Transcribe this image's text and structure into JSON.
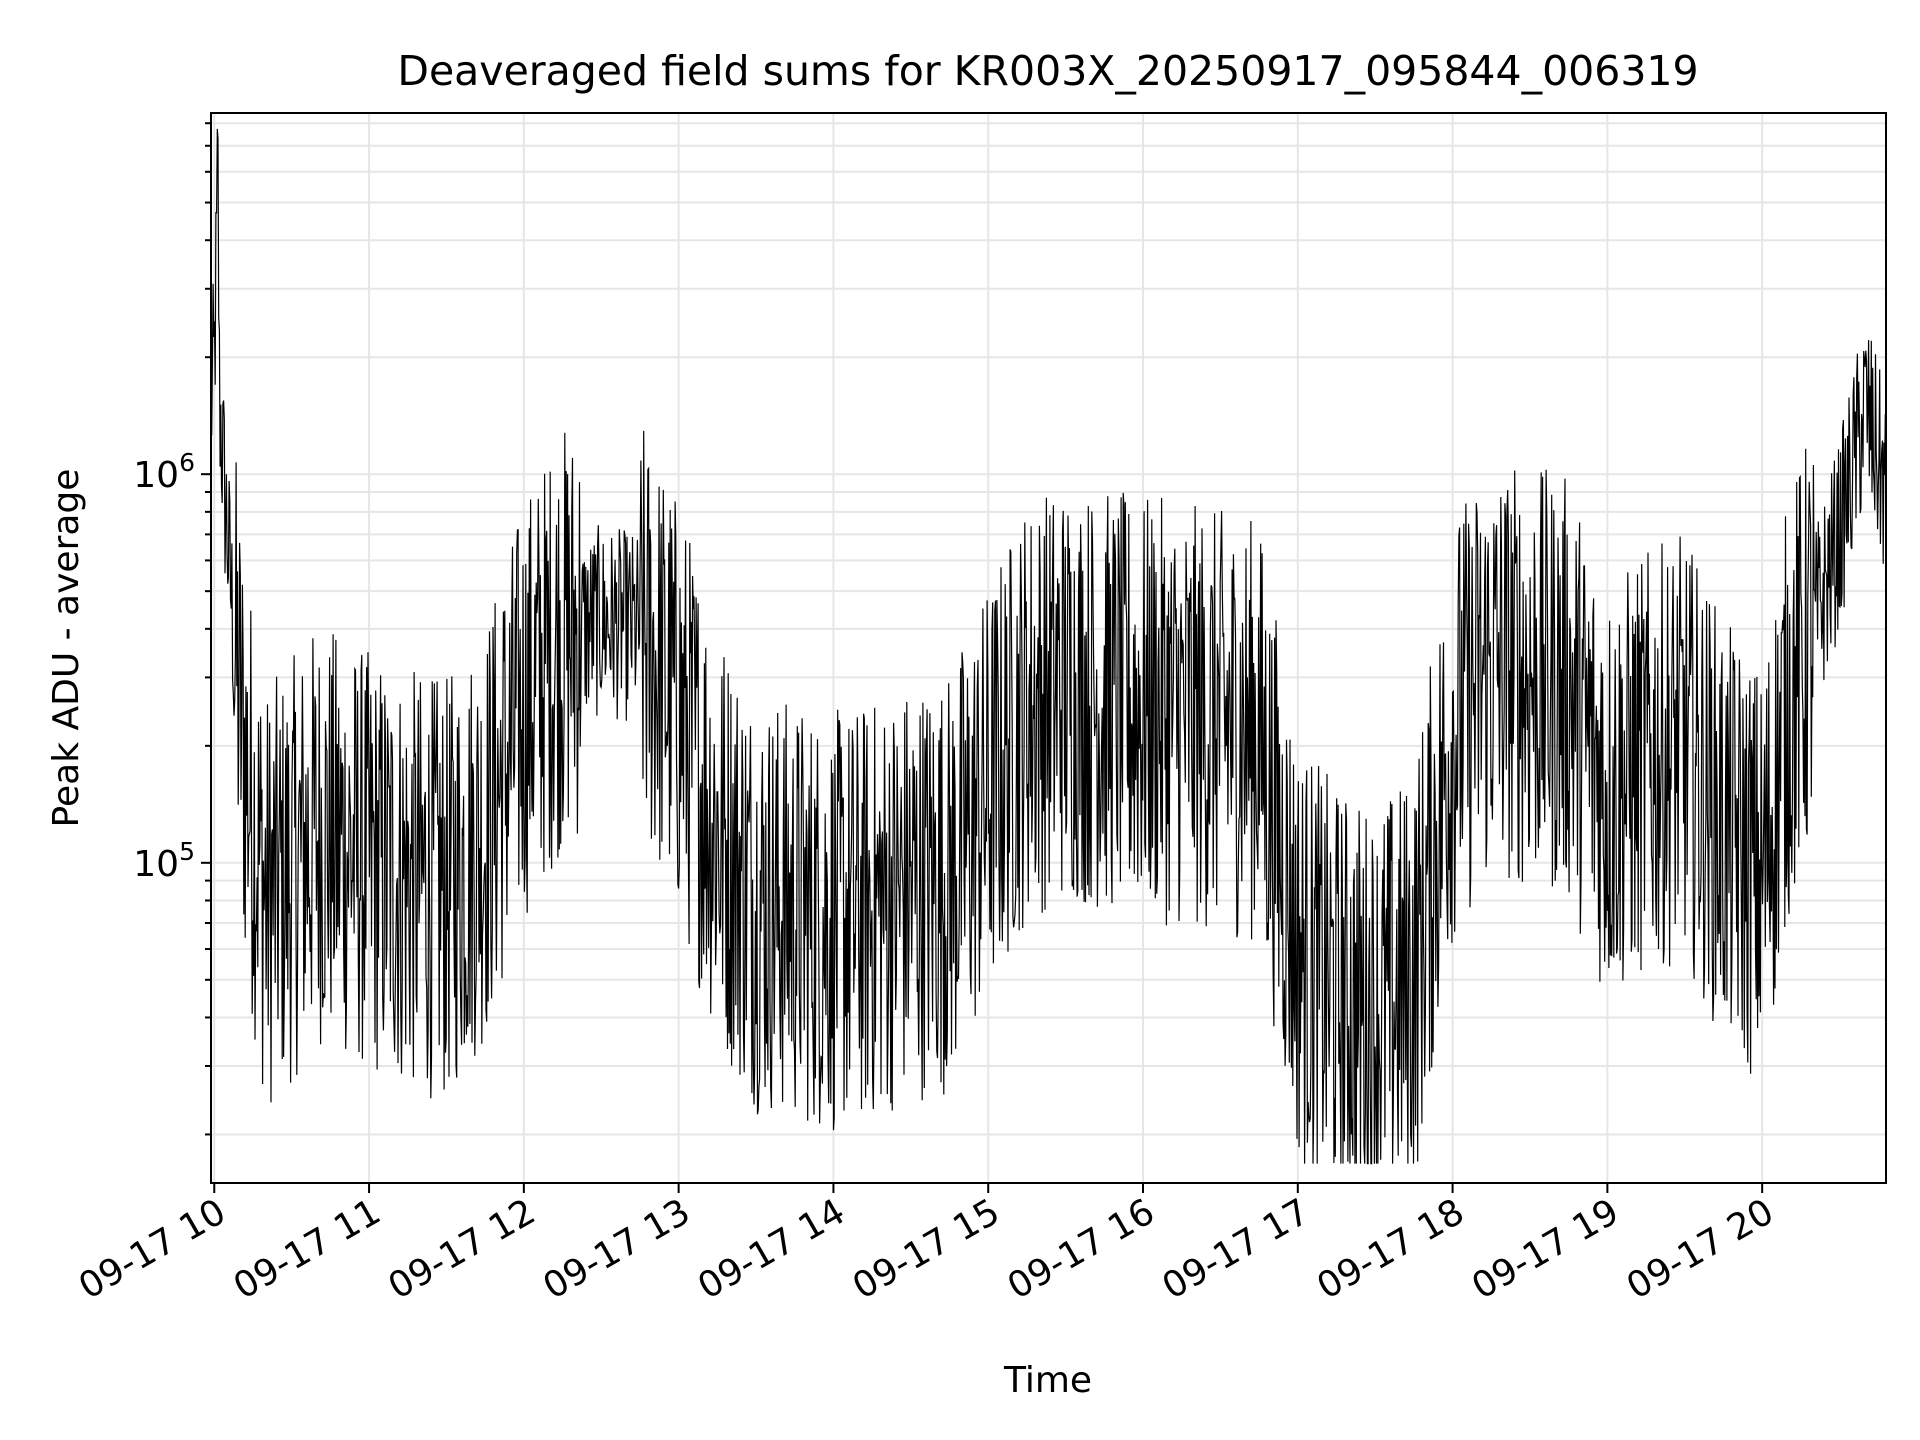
{
  "chart_data": {
    "type": "line",
    "title": "Deaveraged field sums for KR003X_20250917_095844_006319",
    "xlabel": "Time",
    "ylabel": "Peak ADU - average",
    "x_scale": "time",
    "y_scale": "log",
    "xlim": [
      "2025-09-17 09:58:44",
      "2025-09-17 20:48:00"
    ],
    "ylim": [
      15000,
      8500000
    ],
    "x_ticks": [
      {
        "t": "2025-09-17 10:00",
        "label": "09-17 10"
      },
      {
        "t": "2025-09-17 11:00",
        "label": "09-17 11"
      },
      {
        "t": "2025-09-17 12:00",
        "label": "09-17 12"
      },
      {
        "t": "2025-09-17 13:00",
        "label": "09-17 13"
      },
      {
        "t": "2025-09-17 14:00",
        "label": "09-17 14"
      },
      {
        "t": "2025-09-17 15:00",
        "label": "09-17 15"
      },
      {
        "t": "2025-09-17 16:00",
        "label": "09-17 16"
      },
      {
        "t": "2025-09-17 17:00",
        "label": "09-17 17"
      },
      {
        "t": "2025-09-17 18:00",
        "label": "09-17 18"
      },
      {
        "t": "2025-09-17 19:00",
        "label": "09-17 19"
      },
      {
        "t": "2025-09-17 20:00",
        "label": "09-17 20"
      }
    ],
    "y_ticks": [
      {
        "value": 100000,
        "base": "10",
        "exp": "5"
      },
      {
        "value": 1000000,
        "base": "10",
        "exp": "6"
      }
    ],
    "grid": true,
    "line_color": "#000000",
    "series": [
      {
        "points": [
          [
            "2025-09-17 09:58:44",
            1500000
          ],
          [
            "2025-09-17 10:00:00",
            1900000
          ],
          [
            "2025-09-17 10:01:00",
            4000000
          ],
          [
            "2025-09-17 10:01:20",
            7000000
          ],
          [
            "2025-09-17 10:02:00",
            1600000
          ],
          [
            "2025-09-17 10:04:00",
            900000
          ],
          [
            "2025-09-17 10:08:00",
            350000
          ],
          [
            "2025-09-17 10:12:00",
            180000
          ],
          [
            "2025-09-17 10:16:00",
            120000
          ],
          [
            "2025-09-17 10:20:00",
            80000
          ],
          [
            "2025-09-17 10:30:00",
            95000
          ],
          [
            "2025-09-17 10:40:00",
            120000
          ],
          [
            "2025-09-17 10:50:00",
            110000
          ],
          [
            "2025-09-17 11:00:00",
            100000
          ],
          [
            "2025-09-17 11:15:00",
            90000
          ],
          [
            "2025-09-17 11:30:00",
            85000
          ],
          [
            "2025-09-17 11:45:00",
            120000
          ],
          [
            "2025-09-17 12:00:00",
            250000
          ],
          [
            "2025-09-17 12:15:00",
            380000
          ],
          [
            "2025-09-17 12:30:00",
            420000
          ],
          [
            "2025-09-17 12:45:00",
            400000
          ],
          [
            "2025-09-17 13:00:00",
            250000
          ],
          [
            "2025-09-17 13:15:00",
            120000
          ],
          [
            "2025-09-17 13:30:00",
            80000
          ],
          [
            "2025-09-17 13:45:00",
            75000
          ],
          [
            "2025-09-17 14:00:00",
            70000
          ],
          [
            "2025-09-17 14:15:00",
            75000
          ],
          [
            "2025-09-17 14:30:00",
            85000
          ],
          [
            "2025-09-17 14:45:00",
            90000
          ],
          [
            "2025-09-17 15:00:00",
            150000
          ],
          [
            "2025-09-17 15:15:00",
            250000
          ],
          [
            "2025-09-17 15:30:00",
            280000
          ],
          [
            "2025-09-17 15:45:00",
            260000
          ],
          [
            "2025-09-17 16:00:00",
            250000
          ],
          [
            "2025-09-17 16:15:00",
            240000
          ],
          [
            "2025-09-17 16:30:00",
            230000
          ],
          [
            "2025-09-17 16:45:00",
            220000
          ],
          [
            "2025-09-17 17:00:00",
            60000
          ],
          [
            "2025-09-17 17:15:00",
            45000
          ],
          [
            "2025-09-17 17:30:00",
            40000
          ],
          [
            "2025-09-17 17:45:00",
            50000
          ],
          [
            "2025-09-17 18:00:00",
            220000
          ],
          [
            "2025-09-17 18:15:00",
            320000
          ],
          [
            "2025-09-17 18:30:00",
            300000
          ],
          [
            "2025-09-17 18:45:00",
            280000
          ],
          [
            "2025-09-17 19:00:00",
            150000
          ],
          [
            "2025-09-17 19:15:00",
            180000
          ],
          [
            "2025-09-17 19:30:00",
            200000
          ],
          [
            "2025-09-17 19:45:00",
            120000
          ],
          [
            "2025-09-17 20:00:00",
            90000
          ],
          [
            "2025-09-17 20:10:00",
            250000
          ],
          [
            "2025-09-17 20:20:00",
            400000
          ],
          [
            "2025-09-17 20:30:00",
            700000
          ],
          [
            "2025-09-17 20:40:00",
            1500000
          ],
          [
            "2025-09-17 20:48:00",
            900000
          ]
        ]
      }
    ]
  }
}
